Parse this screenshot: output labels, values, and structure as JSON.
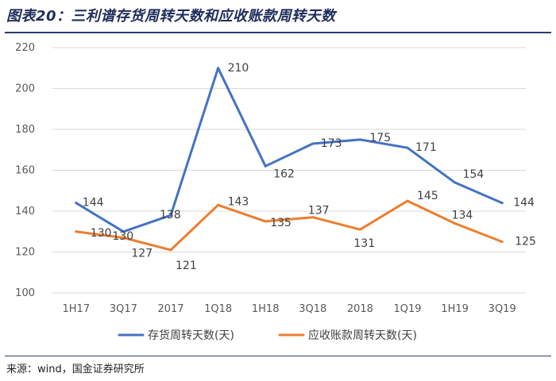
{
  "title": "图表20：三利谱存货周转天数和应收账款周转天数",
  "source": "来源：wind，国金证券研究所",
  "chart_data": {
    "type": "line",
    "categories": [
      "1H17",
      "3Q17",
      "2017",
      "1Q18",
      "1H18",
      "3Q18",
      "2018",
      "1Q19",
      "1H19",
      "3Q19"
    ],
    "ylim": [
      100,
      220
    ],
    "yticks": [
      100,
      120,
      140,
      160,
      180,
      200,
      220
    ],
    "grid": true,
    "legend_position": "bottom",
    "series": [
      {
        "name": "存货周转天数(天)",
        "color": "#4472c4",
        "values": [
          144,
          130,
          138,
          210,
          162,
          173,
          175,
          171,
          154,
          144
        ],
        "labels": [
          "144",
          "130",
          "138",
          "210",
          "162",
          "173",
          "175",
          "171",
          "154",
          "144"
        ]
      },
      {
        "name": "应收账款周转天数(天)",
        "color": "#ed7d31",
        "values": [
          130,
          127,
          121,
          143,
          135,
          137,
          131,
          145,
          134,
          125
        ],
        "labels": [
          "130",
          "127",
          "121",
          "143",
          "135",
          "137",
          "131",
          "145",
          "134",
          "125"
        ]
      }
    ]
  }
}
